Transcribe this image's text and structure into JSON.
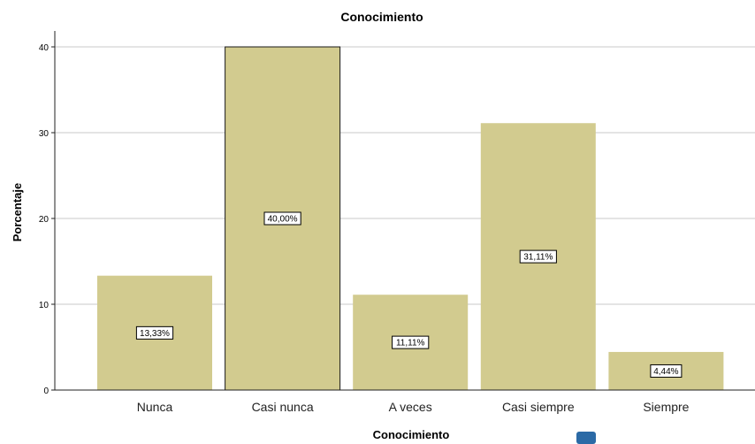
{
  "chart_data": {
    "type": "bar",
    "title": "Conocimiento",
    "xlabel": "Conocimiento",
    "ylabel": "Porcentaje",
    "categories": [
      "Nunca",
      "Casi nunca",
      "A veces",
      "Casi siempre",
      "Siempre"
    ],
    "values": [
      13.33,
      40.0,
      11.11,
      31.11,
      4.44
    ],
    "data_labels": [
      "13,33%",
      "40,00%",
      "11,11%",
      "31,11%",
      "4,44%"
    ],
    "ylim": [
      0,
      42
    ],
    "yticks": [
      "0",
      "10",
      "20",
      "30",
      "40"
    ],
    "ytick_values": [
      0,
      10,
      20,
      30,
      40
    ],
    "grid": true,
    "bar_color": "#d2cb8f",
    "highlighted_index": 1
  }
}
